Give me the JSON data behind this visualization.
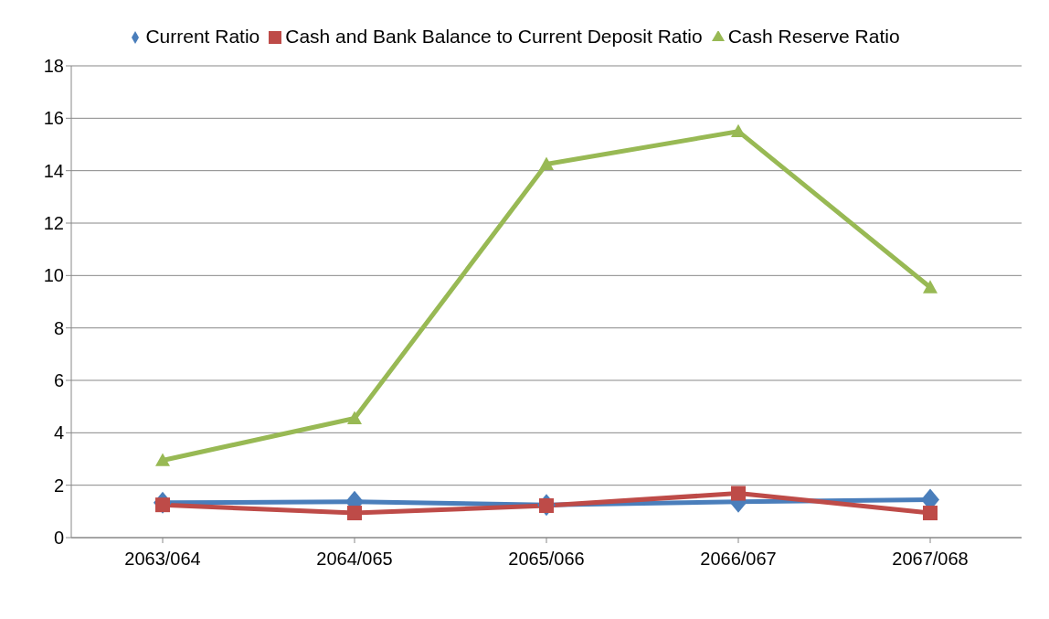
{
  "chart_data": {
    "type": "line",
    "categories": [
      "2063/064",
      "2064/065",
      "2065/066",
      "2066/067",
      "2067/068"
    ],
    "series": [
      {
        "name": "Current Ratio",
        "color": "#4a7ebb",
        "marker": "diamond",
        "values": [
          1.33,
          1.37,
          1.25,
          1.37,
          1.45
        ]
      },
      {
        "name": "Cash and Bank Balance to Current Deposit Ratio",
        "color": "#be4b48",
        "marker": "square",
        "values": [
          1.25,
          0.94,
          1.22,
          1.69,
          0.94
        ]
      },
      {
        "name": "Cash Reserve Ratio",
        "color": "#98b954",
        "marker": "triangle",
        "values": [
          2.95,
          4.55,
          14.25,
          15.5,
          9.55
        ]
      }
    ],
    "ylim": [
      0,
      18
    ],
    "yticks": [
      0,
      2,
      4,
      6,
      8,
      10,
      12,
      14,
      16,
      18
    ],
    "grid": "y",
    "legend": "top"
  }
}
